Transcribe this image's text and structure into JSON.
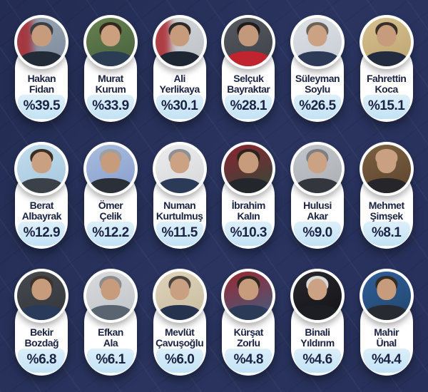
{
  "theme": {
    "background_navy": "#293257",
    "card_white": "#ffffff",
    "chip_blue_top": "#ddeffb",
    "chip_blue_bottom": "#c3e2f5",
    "text_navy": "#1a2342"
  },
  "poll": {
    "people": [
      {
        "first": "Hakan",
        "last": "Fidan",
        "percent": "%39.5",
        "photo": {
          "bg1": "#97a5b4",
          "bg2": "#7c8a9b",
          "flag": "#a8272f",
          "hair": "#3c3f45",
          "skin": "#c79c7d",
          "suit": "#242b38",
          "tie": "#a8272f"
        }
      },
      {
        "first": "Murat",
        "last": "Kurum",
        "percent": "%33.9",
        "photo": {
          "bg1": "#66814f",
          "bg2": "#47603e",
          "hair": "#33281e",
          "skin": "#caa07e",
          "suit": "#2b3c55",
          "tie": "#eef1f4"
        }
      },
      {
        "first": "Ali",
        "last": "Yerlikaya",
        "percent": "%30.1",
        "photo": {
          "bg1": "#d3d6d8",
          "bg2": "#bcc1c6",
          "flag": "#a8252b",
          "hair": "#2e2a28",
          "skin": "#c79c7d",
          "suit": "#1f2633",
          "tie": "#5a3340"
        }
      },
      {
        "first": "Selçuk",
        "last": "Bayraktar",
        "percent": "%28.1",
        "photo": {
          "bg1": "#55595f",
          "bg2": "#3e4249",
          "hair": "#1e1c1c",
          "skin": "#c2997a",
          "suit": "#c0242e",
          "tie": "#2a2327"
        }
      },
      {
        "first": "Süleyman",
        "last": "Soylu",
        "percent": "%26.5",
        "photo": {
          "bg1": "#dde1e6",
          "bg2": "#c7cdd4",
          "hair": "#6b6256",
          "skin": "#cba283",
          "suit": "#2c3a58",
          "tie": "#4a6f9e"
        }
      },
      {
        "first": "Fahrettin",
        "last": "Koca",
        "percent": "%15.1",
        "photo": {
          "bg1": "#d6c08e",
          "bg2": "#bda571",
          "hair": "#3a2f28",
          "skin": "#c79c7d",
          "suit": "#232c3e",
          "tie": "#32415e"
        }
      },
      {
        "first": "Berat",
        "last": "Albayrak",
        "percent": "%12.9",
        "photo": {
          "bg1": "#c2dcec",
          "bg2": "#a6c7de",
          "hair": "#3a2d22",
          "skin": "#c9a081",
          "suit": "#3a4148",
          "tie": "#2e7d82"
        }
      },
      {
        "first": "Ömer",
        "last": "Çelik",
        "percent": "%12.2",
        "photo": {
          "bg1": "#a9bcdf",
          "bg2": "#879fcc",
          "hair": "#9aa0a6",
          "skin": "#c79c7d",
          "suit": "#2b3038",
          "tie": "#4a5668"
        }
      },
      {
        "first": "Numan",
        "last": "Kurtulmuş",
        "percent": "%11.5",
        "photo": {
          "bg1": "#ececee",
          "bg2": "#d6d7da",
          "hair": "#8d9094",
          "skin": "#cba283",
          "suit": "#2b3a57",
          "tie": "#3c5a86"
        }
      },
      {
        "first": "İbrahim",
        "last": "Kalın",
        "percent": "%10.3",
        "photo": {
          "bg1": "#8c2330",
          "bg2": "#2e4b3a",
          "hair": "#2a241f",
          "skin": "#c79c7d",
          "suit": "#23262b",
          "tie": "#303a46"
        }
      },
      {
        "first": "Hulusi",
        "last": "Akar",
        "percent": "%9.0",
        "photo": {
          "bg1": "#c2c5c9",
          "bg2": "#abafb4",
          "hair": "#7f7f82",
          "skin": "#cba283",
          "suit": "#33373d",
          "tie": "#23262b"
        }
      },
      {
        "first": "Mehmet",
        "last": "Şimşek",
        "percent": "%8.1",
        "photo": {
          "bg1": "#7c5f41",
          "bg2": "#5c452e",
          "hair": "#c9a081",
          "skin": "#c9a081",
          "suit": "#26262a",
          "tie": "#444c58"
        }
      },
      {
        "first": "Bekir",
        "last": "Bozdağ",
        "percent": "%6.8",
        "photo": {
          "bg1": "#46494f",
          "bg2": "#33363b",
          "hair": "#3b332c",
          "skin": "#c79c7d",
          "suit": "#2a3a5a",
          "tie": "#3f66a0"
        }
      },
      {
        "first": "Efkan",
        "last": "Ala",
        "percent": "%6.1",
        "photo": {
          "bg1": "#d8dadd",
          "bg2": "#c1c4c8",
          "hair": "#8c8c8e",
          "skin": "#c79c7d",
          "suit": "#5a6470",
          "tie": "#6e2f38"
        }
      },
      {
        "first": "Mevlüt",
        "last": "Çavuşoğlu",
        "percent": "%6.0",
        "photo": {
          "bg1": "#ded2ba",
          "bg2": "#c8bca0",
          "hair": "#4a443c",
          "skin": "#c9a081",
          "suit": "#26334e",
          "tie": "#3c567e"
        }
      },
      {
        "first": "Kürşat",
        "last": "Zorlu",
        "percent": "%4.8",
        "photo": {
          "bg1": "#9c2731",
          "bg2": "#3c5f83",
          "hair": "#2c2620",
          "skin": "#c79c7d",
          "suit": "#2b3a57",
          "tie": "#44608c"
        }
      },
      {
        "first": "Binali",
        "last": "Yıldırım",
        "percent": "%4.6",
        "photo": {
          "bg1": "#26262b",
          "bg2": "#141418",
          "hair": "#d9d9da",
          "skin": "#cba283",
          "suit": "#1d1e23",
          "tie": "#a8232d"
        }
      },
      {
        "first": "Mahir",
        "last": "Ünal",
        "percent": "%4.4",
        "photo": {
          "bg1": "#2f5d9a",
          "bg2": "#22476b",
          "hair": "#332b24",
          "skin": "#c79c7d",
          "suit": "#272a31",
          "tie": "#343b46"
        }
      }
    ]
  },
  "chart_data": {
    "type": "table",
    "title": "",
    "unit": "%",
    "categories": [
      "Hakan Fidan",
      "Murat Kurum",
      "Ali Yerlikaya",
      "Selçuk Bayraktar",
      "Süleyman Soylu",
      "Fahrettin Koca",
      "Berat Albayrak",
      "Ömer Çelik",
      "Numan Kurtulmuş",
      "İbrahim Kalın",
      "Hulusi Akar",
      "Mehmet Şimşek",
      "Bekir Bozdağ",
      "Efkan Ala",
      "Mevlüt Çavuşoğlu",
      "Kürşat Zorlu",
      "Binali Yıldırım",
      "Mahir Ünal"
    ],
    "values": [
      39.5,
      33.9,
      30.1,
      28.1,
      26.5,
      15.1,
      12.9,
      12.2,
      11.5,
      10.3,
      9.0,
      8.1,
      6.8,
      6.1,
      6.0,
      4.8,
      4.6,
      4.4
    ],
    "layout": {
      "grid": "6x3",
      "legend": false,
      "axes": false
    }
  }
}
